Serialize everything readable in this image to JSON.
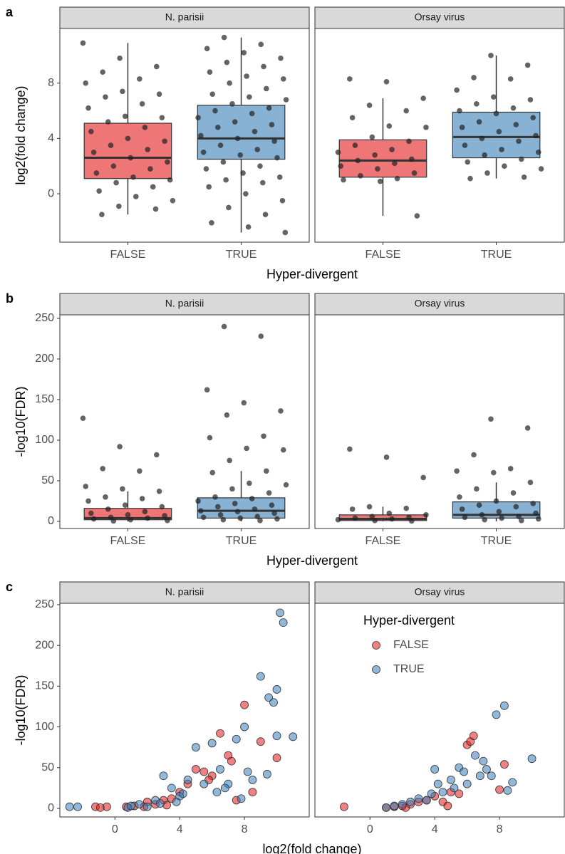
{
  "chart_data": [
    {
      "type": "box",
      "label": "a",
      "y_label": "log2(fold change)",
      "x_label": "Hyper-divergent",
      "categories": [
        "FALSE",
        "TRUE"
      ],
      "colors": [
        "#E41A1C",
        "#377EB8"
      ],
      "ylim": [
        -3.5,
        11.95
      ],
      "yticks": [
        0,
        4,
        8
      ],
      "facets": [
        {
          "title": "N. parisii",
          "groups": [
            {
              "box": {
                "min": -1.5,
                "q1": 1.1,
                "median": 2.6,
                "q3": 5.1,
                "max": 10.9
              },
              "points": [
                10.9,
                9.8,
                9.2,
                8.8,
                8.3,
                8,
                7.4,
                7.2,
                7,
                6.5,
                6.2,
                5.6,
                5.5,
                5.2,
                4.8,
                4.5,
                4,
                3.8,
                3.5,
                3.2,
                3,
                2.6,
                2.3,
                2,
                1.8,
                1.5,
                1.2,
                1,
                0.8,
                0.5,
                0.2,
                -0.2,
                -0.5,
                -0.9,
                -1.1,
                -1.5
              ]
            },
            {
              "box": {
                "min": -2.8,
                "q1": 2.5,
                "median": 4.0,
                "q3": 6.4,
                "max": 11.3
              },
              "points": [
                11.3,
                10.8,
                10.5,
                10.2,
                9.8,
                9.5,
                9.2,
                8.8,
                8.5,
                8.3,
                8,
                7.6,
                7.2,
                7,
                6.8,
                6.5,
                6.2,
                6,
                5.8,
                5.5,
                5.2,
                5,
                4.8,
                4.5,
                4.2,
                4,
                3.8,
                3.5,
                3.2,
                3,
                2.8,
                2.6,
                2.3,
                2,
                1.8,
                1.5,
                1.2,
                1,
                0.8,
                0.5,
                0,
                -0.5,
                -1,
                -1.5,
                -2.1,
                -2.4,
                -2.8
              ]
            }
          ]
        },
        {
          "title": "Orsay virus",
          "groups": [
            {
              "box": {
                "min": -1.6,
                "q1": 1.2,
                "median": 2.4,
                "q3": 3.9,
                "max": 6.9
              },
              "points": [
                8.3,
                8.1,
                6.9,
                6.4,
                6,
                5.5,
                4.9,
                4.8,
                4.1,
                3.8,
                3.5,
                3.2,
                3,
                2.8,
                2.5,
                2.4,
                2.2,
                2,
                1.8,
                1.5,
                1.3,
                1.1,
                1,
                0.9,
                -1.6
              ]
            },
            {
              "box": {
                "min": 1.1,
                "q1": 2.6,
                "median": 4.1,
                "q3": 5.9,
                "max": 10.0
              },
              "points": [
                10,
                9.3,
                8.4,
                8.3,
                7.5,
                7,
                6.8,
                6.5,
                6.2,
                6,
                5.8,
                5.5,
                5.2,
                5,
                4.8,
                4.5,
                4.2,
                4,
                3.8,
                3.5,
                3.2,
                3,
                2.8,
                2.5,
                2.3,
                2,
                1.8,
                1.5,
                1.2,
                1.1
              ]
            }
          ]
        }
      ]
    },
    {
      "type": "box",
      "label": "b",
      "y_label": "-log10(FDR)",
      "x_label": "Hyper-divergent",
      "categories": [
        "FALSE",
        "TRUE"
      ],
      "colors": [
        "#E41A1C",
        "#377EB8"
      ],
      "ylim": [
        -8.8,
        254.4
      ],
      "yticks": [
        0,
        50,
        100,
        150,
        200,
        250
      ],
      "facets": [
        {
          "title": "N. parisii",
          "groups": [
            {
              "box": {
                "min": 0,
                "q1": 2,
                "median": 4,
                "q3": 16,
                "max": 37
              },
              "points": [
                127,
                92,
                82,
                65,
                62,
                43,
                40,
                37,
                30,
                28,
                25,
                20,
                18,
                15,
                12,
                10,
                8,
                7,
                5,
                4,
                3,
                2,
                1,
                0.5
              ]
            },
            {
              "box": {
                "min": 0,
                "q1": 4,
                "median": 13,
                "q3": 29,
                "max": 62
              },
              "points": [
                240,
                228,
                162,
                146,
                136,
                131,
                105,
                103,
                90,
                88,
                75,
                62,
                60,
                47,
                45,
                40,
                35,
                30,
                28,
                25,
                22,
                20,
                18,
                15,
                13,
                12,
                10,
                8,
                6,
                5,
                4,
                3,
                2,
                1
              ]
            }
          ]
        },
        {
          "title": "Orsay virus",
          "groups": [
            {
              "box": {
                "min": 0,
                "q1": 1,
                "median": 3,
                "q3": 8,
                "max": 18
              },
              "points": [
                89,
                79,
                54,
                18,
                16,
                15,
                10,
                8,
                6,
                5,
                4,
                3,
                2,
                1,
                0.5
              ]
            },
            {
              "box": {
                "min": 0,
                "q1": 4,
                "median": 8,
                "q3": 24,
                "max": 48
              },
              "points": [
                126,
                115,
                82,
                65,
                62,
                60,
                48,
                40,
                35,
                30,
                25,
                22,
                20,
                18,
                15,
                12,
                10,
                8,
                6,
                5,
                4,
                3,
                2,
                1
              ]
            }
          ]
        }
      ]
    },
    {
      "type": "scatter",
      "label": "c",
      "y_label": "-log10(FDR)",
      "x_label": "log2(fold change)",
      "legend_title": "Hyper-divergent",
      "series": [
        {
          "name": "FALSE",
          "color": "#E41A1C"
        },
        {
          "name": "TRUE",
          "color": "#377EB8"
        }
      ],
      "xlim": [
        -3.4,
        12.0
      ],
      "xticks": [
        0,
        4,
        8
      ],
      "ylim": [
        -10.5,
        251.7
      ],
      "yticks": [
        0,
        50,
        100,
        150,
        200,
        250
      ],
      "facets": [
        {
          "title": "N. parisii",
          "points": [
            {
              "x": [
                -1.2,
                -0.9,
                -0.5,
                0.7,
                1.2,
                2,
                2.5,
                3,
                3.5,
                4,
                4.5,
                5,
                5.5,
                6,
                6.5,
                7,
                7.5,
                8,
                8.5,
                9,
                10,
                5.8,
                7.2,
                3.2,
                1.8
              ],
              "y": [
                2,
                1,
                2,
                2,
                3,
                8,
                5,
                10,
                12,
                20,
                30,
                48,
                45,
                40,
                92,
                65,
                10,
                127,
                20,
                82,
                62,
                35,
                58,
                4,
                2
              ]
            },
            {
              "x": [
                -2.8,
                -2.3,
                0.8,
                1,
                1.5,
                2,
                2.5,
                3,
                3.5,
                4,
                4.5,
                5,
                5.5,
                6,
                6.5,
                7,
                7.5,
                8,
                8.5,
                9,
                9.5,
                10,
                10.2,
                10.4,
                10,
                9.8,
                11,
                6.3,
                4.2,
                7.8,
                6.8,
                8.2,
                9.4,
                3.8,
                2.8
              ],
              "y": [
                2,
                2,
                1,
                3,
                5,
                2,
                10,
                40,
                25,
                15,
                35,
                75,
                30,
                80,
                48,
                30,
                85,
                100,
                35,
                162,
                136,
                89,
                240,
                228,
                146,
                130,
                88,
                20,
                18,
                12,
                25,
                45,
                42,
                8,
                6
              ]
            }
          ]
        },
        {
          "title": "Orsay virus",
          "points": [
            {
              "x": [
                -1.6,
                1,
                1.5,
                2,
                2.5,
                3,
                3.5,
                4,
                4.5,
                5,
                5.5,
                6,
                6.2,
                6.4,
                8.3,
                8,
                4.8,
                2.2
              ],
              "y": [
                2,
                1,
                2,
                3,
                5,
                8,
                10,
                15,
                8,
                20,
                18,
                78,
                82,
                89,
                54,
                23,
                3,
                1
              ]
            },
            {
              "x": [
                1,
                1.5,
                2,
                2.5,
                3,
                3.5,
                4,
                4.2,
                4.5,
                5,
                5.5,
                5.8,
                6,
                6.5,
                7,
                7.2,
                7.5,
                7.8,
                8.3,
                8.5,
                8.8,
                10,
                6.8,
                5.2,
                3.8
              ],
              "y": [
                1,
                3,
                5,
                8,
                12,
                10,
                48,
                30,
                20,
                35,
                50,
                45,
                30,
                65,
                58,
                48,
                40,
                115,
                126,
                22,
                32,
                61,
                40,
                25,
                18
              ]
            }
          ]
        }
      ]
    }
  ]
}
